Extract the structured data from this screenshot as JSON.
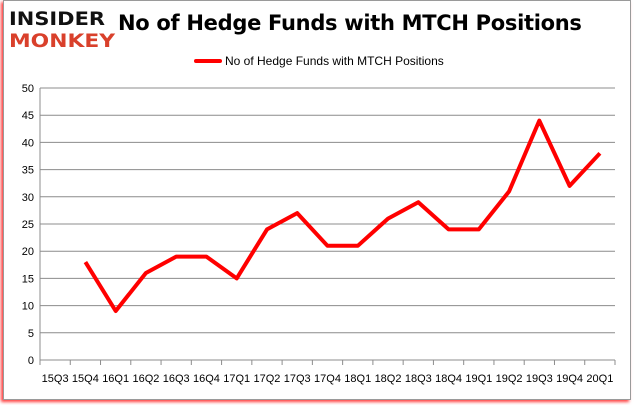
{
  "logo": {
    "line1": "INSIDER",
    "line2": "MONKEY"
  },
  "colors": {
    "series": "#ff0000",
    "logo_top": "#111111",
    "logo_bottom": "#d9402b",
    "grid": "#8c8c8c"
  },
  "chart_data": {
    "type": "line",
    "title": "No of Hedge Funds with MTCH Positions",
    "xlabel": "",
    "ylabel": "",
    "ylim": [
      0,
      50
    ],
    "yticks": [
      0,
      5,
      10,
      15,
      20,
      25,
      30,
      35,
      40,
      45,
      50
    ],
    "grid": true,
    "legend_position": "top",
    "categories": [
      "15Q3",
      "15Q4",
      "16Q1",
      "16Q2",
      "16Q3",
      "16Q4",
      "17Q1",
      "17Q2",
      "17Q3",
      "17Q4",
      "18Q1",
      "18Q2",
      "18Q3",
      "18Q4",
      "19Q1",
      "19Q2",
      "19Q3",
      "19Q4",
      "20Q1"
    ],
    "series": [
      {
        "name": "No of Hedge Funds with MTCH Positions",
        "values": [
          null,
          18,
          9,
          16,
          19,
          19,
          15,
          24,
          27,
          21,
          21,
          26,
          29,
          24,
          24,
          31,
          44,
          32,
          38
        ]
      }
    ]
  }
}
